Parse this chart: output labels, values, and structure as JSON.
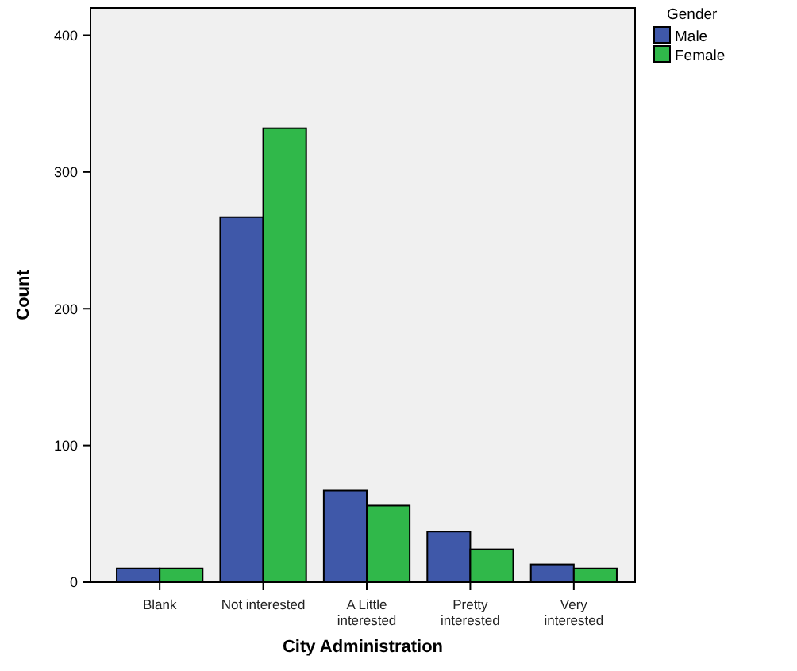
{
  "chart_data": {
    "type": "bar",
    "xlabel": "City Administration",
    "ylabel": "Count",
    "legend_title": "Gender",
    "legend": "top right",
    "categories": [
      "Blank",
      "Not interested",
      "A Little interested",
      "Pretty interested",
      "Very interested"
    ],
    "series": [
      {
        "name": "Male",
        "color": "#3f58a9",
        "values": [
          10,
          267,
          67,
          37,
          13
        ]
      },
      {
        "name": "Female",
        "color": "#30b84a",
        "values": [
          10,
          332,
          56,
          24,
          10
        ]
      }
    ],
    "ylim": [
      0,
      420
    ],
    "yticks": [
      0,
      100,
      200,
      300,
      400
    ],
    "grid": false
  }
}
